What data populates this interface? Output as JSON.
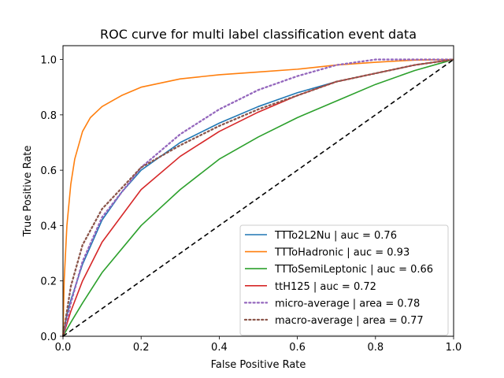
{
  "chart_data": {
    "type": "line",
    "title": "ROC curve for multi label classification event data",
    "xlabel": "False Positive Rate",
    "ylabel": "True Positive Rate",
    "xlim": [
      0.0,
      1.0
    ],
    "ylim": [
      0.0,
      1.05
    ],
    "xticks": [
      "0.0",
      "0.2",
      "0.4",
      "0.6",
      "0.8",
      "1.0"
    ],
    "yticks": [
      "0.0",
      "0.2",
      "0.4",
      "0.6",
      "0.8",
      "1.0"
    ],
    "grid": false,
    "legend_position": "lower-right",
    "series": [
      {
        "name": "TTTo2L2Nu | auc = 0.76",
        "color": "#1f77b4",
        "dash": "solid",
        "x": [
          0,
          0.01,
          0.02,
          0.05,
          0.1,
          0.15,
          0.2,
          0.3,
          0.4,
          0.5,
          0.6,
          0.7,
          0.8,
          0.9,
          1.0
        ],
        "y": [
          0,
          0.08,
          0.13,
          0.26,
          0.42,
          0.52,
          0.6,
          0.7,
          0.77,
          0.83,
          0.88,
          0.92,
          0.95,
          0.98,
          1.0
        ]
      },
      {
        "name": "TTToHadronic | auc = 0.93",
        "color": "#ff7f0e",
        "dash": "solid",
        "x": [
          0,
          0.003,
          0.01,
          0.02,
          0.03,
          0.05,
          0.07,
          0.1,
          0.15,
          0.2,
          0.3,
          0.4,
          0.5,
          0.6,
          0.7,
          0.8,
          0.9,
          1.0
        ],
        "y": [
          0,
          0.2,
          0.4,
          0.55,
          0.64,
          0.74,
          0.79,
          0.83,
          0.87,
          0.9,
          0.93,
          0.945,
          0.955,
          0.965,
          0.98,
          0.99,
          0.998,
          1.0
        ]
      },
      {
        "name": "TTToSemiLeptonic | auc = 0.66",
        "color": "#2ca02c",
        "dash": "solid",
        "x": [
          0,
          0.02,
          0.05,
          0.1,
          0.2,
          0.3,
          0.4,
          0.5,
          0.6,
          0.7,
          0.8,
          0.9,
          1.0
        ],
        "y": [
          0,
          0.05,
          0.12,
          0.23,
          0.4,
          0.53,
          0.64,
          0.72,
          0.79,
          0.85,
          0.91,
          0.96,
          1.0
        ]
      },
      {
        "name": "ttH125 | auc = 0.72",
        "color": "#d62728",
        "dash": "solid",
        "x": [
          0,
          0.02,
          0.05,
          0.1,
          0.2,
          0.3,
          0.4,
          0.5,
          0.6,
          0.7,
          0.8,
          0.9,
          1.0
        ],
        "y": [
          0,
          0.09,
          0.2,
          0.34,
          0.53,
          0.65,
          0.74,
          0.81,
          0.87,
          0.92,
          0.95,
          0.98,
          1.0
        ]
      },
      {
        "name": "micro-average | area = 0.78",
        "color": "#9467bd",
        "dash": "dotted",
        "x": [
          0,
          0.02,
          0.05,
          0.1,
          0.2,
          0.3,
          0.4,
          0.5,
          0.6,
          0.7,
          0.8,
          0.9,
          1.0
        ],
        "y": [
          0,
          0.12,
          0.27,
          0.43,
          0.61,
          0.73,
          0.82,
          0.89,
          0.94,
          0.98,
          1.0,
          1.0,
          1.0
        ]
      },
      {
        "name": "macro-average | area = 0.77",
        "color": "#8c564b",
        "dash": "dotted",
        "x": [
          0,
          0.02,
          0.05,
          0.1,
          0.2,
          0.3,
          0.4,
          0.5,
          0.6,
          0.7,
          0.8,
          0.9,
          1.0
        ],
        "y": [
          0,
          0.18,
          0.33,
          0.46,
          0.61,
          0.69,
          0.76,
          0.82,
          0.87,
          0.92,
          0.95,
          0.98,
          1.0
        ]
      },
      {
        "name": "",
        "color": "#000000",
        "dash": "dashed",
        "x": [
          0,
          1.0
        ],
        "y": [
          0,
          1.0
        ]
      }
    ]
  }
}
